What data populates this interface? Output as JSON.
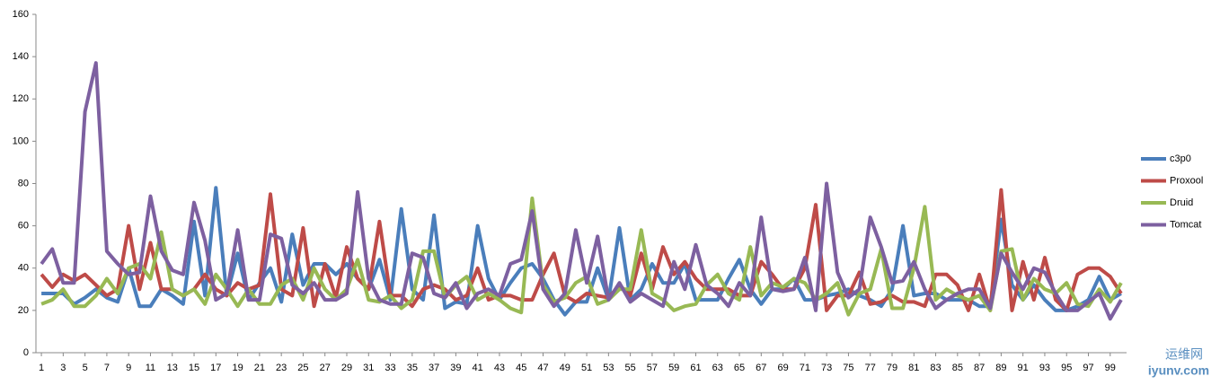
{
  "chart_data": {
    "type": "line",
    "x": [
      1,
      2,
      3,
      4,
      5,
      6,
      7,
      8,
      9,
      10,
      11,
      12,
      13,
      14,
      15,
      16,
      17,
      18,
      19,
      20,
      21,
      22,
      23,
      24,
      25,
      26,
      27,
      28,
      29,
      30,
      31,
      32,
      33,
      34,
      35,
      36,
      37,
      38,
      39,
      40,
      41,
      42,
      43,
      44,
      45,
      46,
      47,
      48,
      49,
      50,
      51,
      52,
      53,
      54,
      55,
      56,
      57,
      58,
      59,
      60,
      61,
      62,
      63,
      64,
      65,
      66,
      67,
      68,
      69,
      70,
      71,
      72,
      73,
      74,
      75,
      76,
      77,
      78,
      79,
      80,
      81,
      82,
      83,
      84,
      85,
      86,
      87,
      88,
      89,
      90,
      91,
      92,
      93,
      94,
      95,
      96,
      97,
      98,
      99,
      100
    ],
    "xlim": [
      0.5,
      100.5
    ],
    "xticks": [
      1,
      3,
      5,
      7,
      9,
      11,
      13,
      15,
      17,
      19,
      21,
      23,
      25,
      27,
      29,
      31,
      33,
      35,
      37,
      39,
      41,
      43,
      45,
      47,
      49,
      51,
      53,
      55,
      57,
      59,
      61,
      63,
      65,
      67,
      69,
      71,
      73,
      75,
      77,
      79,
      81,
      83,
      85,
      87,
      89,
      91,
      93,
      95,
      97,
      99
    ],
    "ylim": [
      0,
      160
    ],
    "yticks": [
      0,
      20,
      40,
      60,
      80,
      100,
      120,
      140,
      160
    ],
    "legend": "right",
    "series": [
      {
        "name": "c3p0",
        "color": "#4a7ebb",
        "values": [
          28,
          28,
          28,
          23,
          26,
          30,
          26,
          24,
          40,
          22,
          22,
          30,
          27,
          23,
          62,
          27,
          78,
          27,
          47,
          25,
          33,
          40,
          24,
          56,
          32,
          42,
          42,
          37,
          42,
          35,
          30,
          44,
          25,
          68,
          30,
          25,
          65,
          21,
          24,
          23,
          60,
          35,
          25,
          33,
          40,
          42,
          35,
          25,
          18,
          24,
          24,
          40,
          25,
          59,
          25,
          30,
          42,
          33,
          33,
          42,
          25,
          25,
          25,
          35,
          44,
          30,
          23,
          30,
          30,
          35,
          25,
          25,
          27,
          28,
          30,
          27,
          25,
          22,
          30,
          60,
          27,
          28,
          28,
          25,
          25,
          25,
          22,
          22,
          63,
          32,
          25,
          32,
          25,
          20,
          20,
          22,
          25,
          36,
          25,
          28
        ]
      },
      {
        "name": "Proxool",
        "color": "#be4b48",
        "values": [
          37,
          31,
          37,
          34,
          37,
          32,
          27,
          30,
          60,
          30,
          52,
          30,
          30,
          27,
          30,
          37,
          30,
          27,
          33,
          30,
          32,
          75,
          30,
          27,
          59,
          22,
          42,
          26,
          50,
          35,
          30,
          62,
          27,
          27,
          22,
          30,
          32,
          30,
          25,
          27,
          40,
          25,
          27,
          27,
          25,
          25,
          37,
          47,
          27,
          24,
          28,
          27,
          26,
          32,
          27,
          47,
          30,
          50,
          37,
          43,
          35,
          30,
          30,
          30,
          27,
          27,
          43,
          37,
          30,
          30,
          40,
          70,
          20,
          27,
          27,
          38,
          23,
          24,
          27,
          24,
          24,
          22,
          37,
          37,
          32,
          20,
          37,
          20,
          77,
          20,
          43,
          25,
          45,
          25,
          20,
          37,
          40,
          40,
          36,
          28
        ]
      },
      {
        "name": "Druid",
        "color": "#98b954",
        "values": [
          23,
          25,
          30,
          22,
          22,
          27,
          35,
          28,
          40,
          42,
          35,
          57,
          30,
          27,
          30,
          23,
          37,
          30,
          22,
          30,
          23,
          23,
          32,
          35,
          25,
          40,
          30,
          25,
          30,
          44,
          25,
          24,
          27,
          21,
          25,
          48,
          48,
          26,
          32,
          36,
          25,
          28,
          25,
          21,
          19,
          73,
          32,
          24,
          26,
          33,
          36,
          23,
          25,
          30,
          30,
          58,
          28,
          25,
          20,
          22,
          23,
          32,
          37,
          28,
          25,
          50,
          27,
          33,
          31,
          35,
          33,
          25,
          28,
          33,
          18,
          28,
          30,
          49,
          21,
          21,
          40,
          69,
          25,
          30,
          27,
          25,
          27,
          20,
          48,
          49,
          25,
          35,
          30,
          28,
          33,
          23,
          22,
          30,
          24,
          33
        ]
      },
      {
        "name": "Tomcat",
        "color": "#7d60a0",
        "values": [
          42,
          49,
          33,
          33,
          114,
          137,
          48,
          42,
          37,
          38,
          74,
          48,
          39,
          37,
          71,
          53,
          25,
          28,
          58,
          25,
          25,
          56,
          54,
          32,
          28,
          33,
          25,
          25,
          28,
          76,
          35,
          25,
          23,
          23,
          47,
          45,
          28,
          26,
          33,
          21,
          28,
          30,
          27,
          42,
          44,
          67,
          30,
          22,
          28,
          58,
          33,
          55,
          25,
          33,
          24,
          28,
          25,
          22,
          43,
          30,
          51,
          32,
          28,
          22,
          33,
          27,
          64,
          30,
          29,
          30,
          45,
          20,
          80,
          38,
          26,
          30,
          64,
          50,
          33,
          34,
          43,
          30,
          21,
          25,
          28,
          30,
          30,
          21,
          47,
          38,
          30,
          40,
          38,
          28,
          20,
          20,
          24,
          28,
          16,
          25
        ]
      }
    ]
  },
  "watermark": {
    "name": "运维网",
    "url": "iyunv.com"
  }
}
